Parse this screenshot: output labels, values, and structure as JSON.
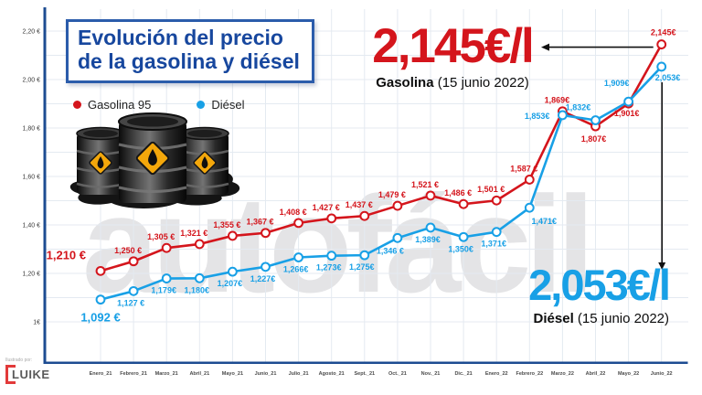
{
  "title": {
    "line1": "Evolución del precio",
    "line2": "de la gasolina y diésel"
  },
  "legend": {
    "items": [
      {
        "label": "Gasolina 95",
        "color": "#d4151c"
      },
      {
        "label": "Diésel",
        "color": "#18a0e6"
      }
    ]
  },
  "callouts": {
    "gasolina": {
      "value": "2,145€/l",
      "name": "Gasolina",
      "date": "(15 junio 2022)"
    },
    "diesel": {
      "value": "2,053€/l",
      "name": "Diésel",
      "date": "(15 junio 2022)"
    }
  },
  "watermark": {
    "text": "autofácil"
  },
  "credit": {
    "label": "Ilustrado por:",
    "brand": "LUIKE"
  },
  "colors": {
    "gasolina": "#d4151c",
    "diesel": "#18a0e6",
    "axis": "#1d4c92",
    "grid": "#e4eaf1",
    "tick_text": "#3a3a3a",
    "title_blue": "#17479e"
  },
  "chart_data": {
    "type": "line",
    "title": "Evolución del precio de la gasolina y diésel",
    "categories": [
      "Enero_21",
      "Febrero_21",
      "Marzo_21",
      "Abril_21",
      "Mayo_21",
      "Junio_21",
      "Julio_21",
      "Agosto_21",
      "Sept._21",
      "Oct._21",
      "Nov._21",
      "Dic._21",
      "Enero_22",
      "Febrero_22",
      "Marzo_22",
      "Abril_22",
      "Mayo_22",
      "Junio_22"
    ],
    "series": [
      {
        "name": "Gasolina 95",
        "color": "#d4151c",
        "values": [
          1.21,
          1.25,
          1.305,
          1.321,
          1.355,
          1.367,
          1.408,
          1.427,
          1.437,
          1.479,
          1.521,
          1.486,
          1.501,
          1.587,
          1.869,
          1.807,
          1.901,
          2.145
        ],
        "labels": [
          "1,210 €",
          "1,250 €",
          "1,305 €",
          "1,321 €",
          "1,355 €",
          "1,367 €",
          "1,408 €",
          "1,427 €",
          "1,437 €",
          "1,479 €",
          "1,521 €",
          "1,486 €",
          "1,501 €",
          "1,587 €",
          "1,869€",
          "1,807€",
          "1,901€",
          "2,145€"
        ]
      },
      {
        "name": "Diésel",
        "color": "#18a0e6",
        "values": [
          1.092,
          1.127,
          1.179,
          1.18,
          1.207,
          1.227,
          1.266,
          1.273,
          1.275,
          1.346,
          1.389,
          1.35,
          1.371,
          1.471,
          1.853,
          1.832,
          1.909,
          2.053
        ],
        "labels": [
          "1,092 €",
          "1,127 €",
          "1,179€",
          "1,180€",
          "1,207€",
          "1,227€",
          "1,266€",
          "1,273€",
          "1,275€",
          "1,346 €",
          "1,389€",
          "1,350€",
          "1,371€",
          "1,471€",
          "1,853€",
          "1,832€",
          "1,909€",
          "2,053€"
        ]
      }
    ],
    "y_ticks": [
      {
        "label": "2,20 €",
        "value": 2.2
      },
      {
        "label": "2,00 €",
        "value": 2.0
      },
      {
        "label": "1,80 €",
        "value": 1.8
      },
      {
        "label": "1,60 €",
        "value": 1.6
      },
      {
        "label": "1,40 €",
        "value": 1.4
      },
      {
        "label": "1,20 €",
        "value": 1.2
      },
      {
        "label": "1€",
        "value": 1.0
      }
    ],
    "ylim": [
      1.0,
      2.2
    ],
    "grid": true,
    "legend_position": "top-left"
  }
}
